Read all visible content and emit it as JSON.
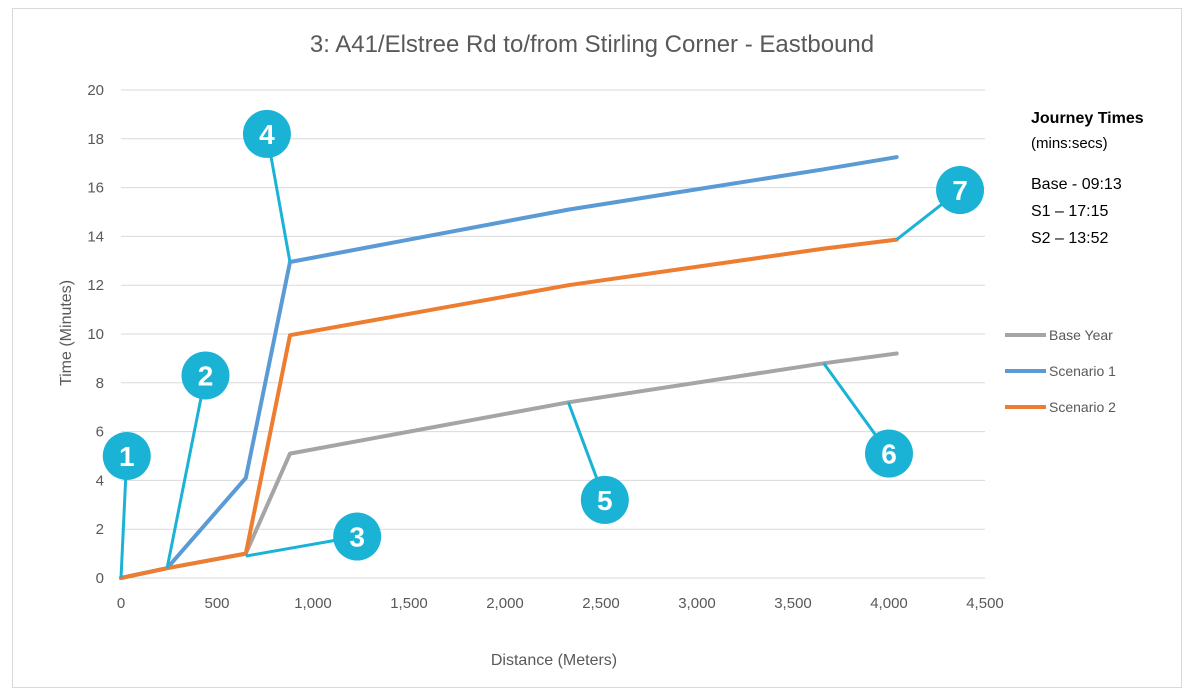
{
  "chart_data": {
    "type": "line",
    "title": "3: A41/Elstree Rd to/from Stirling Corner - Eastbound",
    "xlabel_main": "Distance",
    "xlabel_unit": "(Meters)",
    "ylabel": "Time (Minutes)",
    "xlim": [
      0,
      4500
    ],
    "ylim": [
      0,
      20
    ],
    "xticks": [
      0,
      500,
      1000,
      1500,
      2000,
      2500,
      3000,
      3500,
      4000,
      4500
    ],
    "xtick_labels": [
      "0",
      "500",
      "1,000",
      "1,500",
      "2,000",
      "2,500",
      "3,000",
      "3,500",
      "4,000",
      "4,500"
    ],
    "yticks": [
      0,
      2,
      4,
      6,
      8,
      10,
      12,
      14,
      16,
      18,
      20
    ],
    "ytick_labels": [
      "0",
      "2",
      "4",
      "6",
      "8",
      "10",
      "12",
      "14",
      "16",
      "18",
      "20"
    ],
    "grid": "horizontal",
    "legend_position": "right",
    "series": [
      {
        "name": "Base Year",
        "color": "#a5a5a5",
        "points": [
          [
            0,
            0
          ],
          [
            240,
            0.4
          ],
          [
            650,
            1.0
          ],
          [
            880,
            5.1
          ],
          [
            2330,
            7.2
          ],
          [
            3660,
            8.8
          ],
          [
            4040,
            9.2
          ]
        ]
      },
      {
        "name": "Scenario 1",
        "color": "#5b9bd5",
        "points": [
          [
            0,
            0
          ],
          [
            240,
            0.4
          ],
          [
            650,
            4.1
          ],
          [
            880,
            12.95
          ],
          [
            2330,
            15.1
          ],
          [
            3660,
            16.75
          ],
          [
            4040,
            17.25
          ]
        ]
      },
      {
        "name": "Scenario 2",
        "color": "#ed7d31",
        "points": [
          [
            0,
            0
          ],
          [
            240,
            0.4
          ],
          [
            650,
            1.0
          ],
          [
            880,
            9.95
          ],
          [
            2330,
            12.0
          ],
          [
            3660,
            13.5
          ],
          [
            4040,
            13.87
          ]
        ]
      }
    ],
    "markers": [
      {
        "label": "1",
        "at": [
          0,
          0
        ],
        "badge": [
          30,
          5.0
        ]
      },
      {
        "label": "2",
        "at": [
          240,
          0.4
        ],
        "badge": [
          440,
          8.3
        ]
      },
      {
        "label": "3",
        "at": [
          650,
          0.9
        ],
        "badge": [
          1230,
          1.7
        ]
      },
      {
        "label": "4",
        "at": [
          880,
          12.95
        ],
        "badge": [
          760,
          18.2
        ]
      },
      {
        "label": "5",
        "at": [
          2330,
          7.2
        ],
        "badge": [
          2520,
          3.2
        ]
      },
      {
        "label": "6",
        "at": [
          3660,
          8.8
        ],
        "badge": [
          4000,
          5.1
        ]
      },
      {
        "label": "7",
        "at": [
          4040,
          13.87
        ],
        "badge": [
          4370,
          15.9
        ]
      }
    ],
    "marker_color": "#1ab3d6"
  },
  "journey_times": {
    "heading": "Journey Times",
    "units": "(mins:secs)",
    "lines": [
      "Base - 09:13",
      "S1 – 17:15",
      "S2 – 13:52"
    ]
  }
}
